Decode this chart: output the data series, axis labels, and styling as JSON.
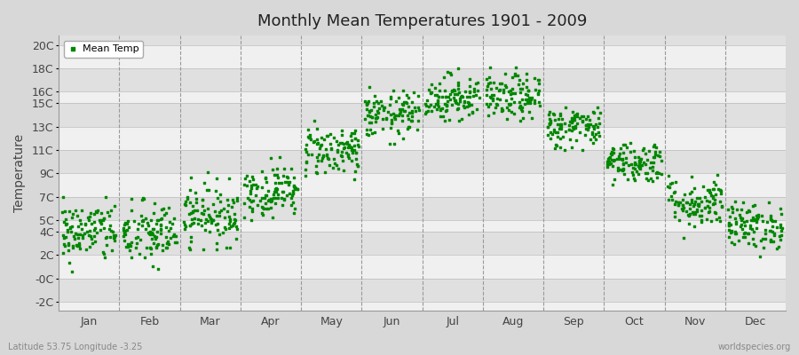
{
  "title": "Monthly Mean Temperatures 1901 - 2009",
  "ylabel": "Temperature",
  "subtitle_left": "Latitude 53.75 Longitude -3.25",
  "subtitle_right": "worldspecies.org",
  "legend_label": "Mean Temp",
  "dot_color": "#008800",
  "background_color": "#d8d8d8",
  "plot_bg_color_light": "#f0f0f0",
  "plot_bg_color_dark": "#e0e0e0",
  "ytick_positions": [
    -2,
    0,
    2,
    4,
    5,
    7,
    9,
    11,
    13,
    15,
    16,
    18,
    20
  ],
  "ytick_labels": [
    "-2C",
    "-0C",
    "2C",
    "4C",
    "5C",
    "7C",
    "9C",
    "11C",
    "13C",
    "15C",
    "16C",
    "18C",
    "20C"
  ],
  "ylim": [
    -2.8,
    20.8
  ],
  "months": [
    "Jan",
    "Feb",
    "Mar",
    "Apr",
    "May",
    "Jun",
    "Jul",
    "Aug",
    "Sep",
    "Oct",
    "Nov",
    "Dec"
  ],
  "n_years": 109,
  "mean_temps_by_month": [
    4.0,
    3.8,
    5.5,
    7.5,
    11.0,
    14.0,
    15.5,
    15.5,
    13.0,
    10.0,
    6.5,
    4.5
  ],
  "std_by_month": [
    1.3,
    1.4,
    1.3,
    1.1,
    1.1,
    1.0,
    1.0,
    1.0,
    0.9,
    0.9,
    1.1,
    1.0
  ],
  "min_by_month": [
    -2.0,
    -1.8,
    2.5,
    5.0,
    8.5,
    11.5,
    13.5,
    13.5,
    11.0,
    8.0,
    3.5,
    1.8
  ],
  "max_by_month": [
    7.0,
    7.0,
    9.2,
    10.5,
    13.5,
    17.5,
    18.8,
    18.8,
    15.5,
    13.5,
    11.5,
    8.5
  ]
}
